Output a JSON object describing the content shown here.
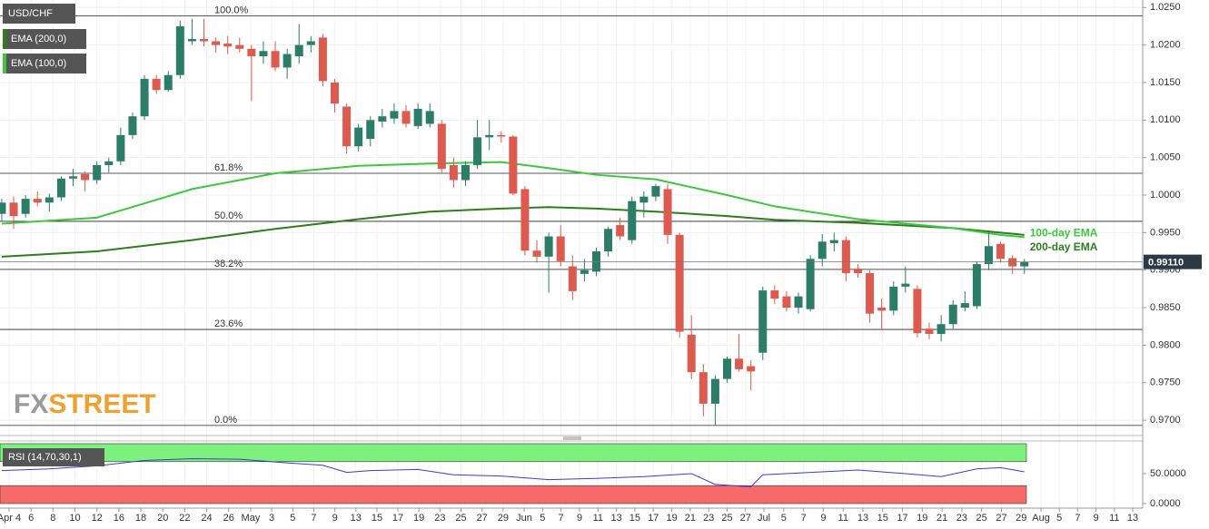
{
  "chart_data": {
    "type": "candlestick",
    "symbol": "USD/CHF",
    "logo": [
      "FX",
      "STREET"
    ],
    "up_color": "#2b7d68",
    "down_color": "#dc5a4e",
    "grid": true,
    "x": [
      0,
      1,
      2,
      3,
      4,
      5,
      6,
      7,
      8,
      9,
      10,
      11,
      12,
      13,
      14,
      15,
      16,
      17,
      18,
      19,
      20,
      21,
      22,
      23,
      24,
      25,
      26,
      27,
      28,
      29,
      30,
      31,
      32,
      33,
      34,
      35,
      36,
      37,
      38,
      39,
      40,
      41,
      42,
      43,
      44,
      45,
      46,
      47,
      48,
      49,
      50,
      51,
      52,
      53,
      54,
      55,
      56,
      57,
      58,
      59,
      60,
      61,
      62,
      63,
      64,
      65,
      66,
      67,
      68,
      69,
      70,
      71,
      72,
      73,
      74,
      75,
      76,
      77,
      78,
      79,
      80,
      81,
      82,
      83,
      84,
      85,
      86
    ],
    "ohlc": [
      [
        0.9975,
        0.9995,
        0.9965,
        0.999
      ],
      [
        0.999,
        0.9998,
        0.9955,
        0.9972
      ],
      [
        0.9975,
        1.0,
        0.997,
        0.9995
      ],
      [
        0.9995,
        1.0005,
        0.9985,
        0.999
      ],
      [
        0.999,
        1.0002,
        0.9978,
        0.9997
      ],
      [
        0.9997,
        1.0025,
        0.9992,
        1.0022
      ],
      [
        1.0022,
        1.0035,
        1.0012,
        1.0025
      ],
      [
        1.0028,
        1.0032,
        1.0005,
        1.002
      ],
      [
        1.002,
        1.0045,
        1.0015,
        1.004
      ],
      [
        1.004,
        1.005,
        1.003,
        1.0045
      ],
      [
        1.0045,
        1.009,
        1.004,
        1.008
      ],
      [
        1.008,
        1.011,
        1.0075,
        1.0105
      ],
      [
        1.0105,
        1.016,
        1.01,
        1.0155
      ],
      [
        1.0155,
        1.016,
        1.0135,
        1.014
      ],
      [
        1.014,
        1.0165,
        1.0138,
        1.016
      ],
      [
        1.016,
        1.0232,
        1.0155,
        1.0225
      ],
      [
        1.0205,
        1.0235,
        1.02,
        1.0208
      ],
      [
        1.0208,
        1.0235,
        1.0198,
        1.0205
      ],
      [
        1.0205,
        1.021,
        1.019,
        1.02
      ],
      [
        1.0202,
        1.0212,
        1.0188,
        1.0198
      ],
      [
        1.02,
        1.021,
        1.019,
        1.0195
      ],
      [
        1.0195,
        1.02,
        1.0125,
        1.0185
      ],
      [
        1.0185,
        1.0205,
        1.0175,
        1.0192
      ],
      [
        1.0192,
        1.0205,
        1.0165,
        1.017
      ],
      [
        1.017,
        1.0195,
        1.0155,
        1.0188
      ],
      [
        1.0185,
        1.0228,
        1.0175,
        1.02
      ],
      [
        1.02,
        1.0212,
        1.019,
        1.0205
      ],
      [
        1.021,
        1.0215,
        1.0145,
        1.0152
      ],
      [
        1.015,
        1.0155,
        1.011,
        1.0122
      ],
      [
        1.0118,
        1.0122,
        1.0055,
        1.0065
      ],
      [
        1.0065,
        1.0095,
        1.0058,
        1.009
      ],
      [
        1.0075,
        1.0105,
        1.0065,
        1.01
      ],
      [
        1.0098,
        1.0115,
        1.009,
        1.0105
      ],
      [
        1.0102,
        1.0122,
        1.0095,
        1.0112
      ],
      [
        1.0112,
        1.012,
        1.009,
        1.0095
      ],
      [
        1.0092,
        1.0122,
        1.0088,
        1.0115
      ],
      [
        1.0095,
        1.0122,
        1.009,
        1.0112
      ],
      [
        1.0095,
        1.01,
        1.003,
        1.0035
      ],
      [
        1.004,
        1.005,
        1.001,
        1.002
      ],
      [
        1.002,
        1.0045,
        1.0012,
        1.004
      ],
      [
        1.004,
        1.01,
        1.0035,
        1.0077
      ],
      [
        1.0077,
        1.01,
        1.006,
        1.008
      ],
      [
        1.008,
        1.0085,
        1.007,
        1.0078
      ],
      [
        1.0078,
        1.008,
        1.0,
        1.0002
      ],
      [
        1.0008,
        1.0012,
        0.992,
        0.9926
      ],
      [
        0.9926,
        0.994,
        0.991,
        0.9918
      ],
      [
        0.9918,
        0.995,
        0.987,
        0.9945
      ],
      [
        0.9945,
        0.996,
        0.9905,
        0.9912
      ],
      [
        0.9905,
        0.992,
        0.986,
        0.9872
      ],
      [
        0.9895,
        0.9915,
        0.9885,
        0.99
      ],
      [
        0.9898,
        0.993,
        0.9892,
        0.9925
      ],
      [
        0.9925,
        0.9958,
        0.9918,
        0.9955
      ],
      [
        0.996,
        0.997,
        0.994,
        0.9945
      ],
      [
        0.994,
        0.9998,
        0.9935,
        0.9992
      ],
      [
        0.999,
        1.0005,
        0.997,
        0.9998
      ],
      [
        0.9998,
        1.0015,
        0.9992,
        1.0012
      ],
      [
        1.0008,
        1.0015,
        0.9935,
        0.9947
      ],
      [
        0.9947,
        0.995,
        0.981,
        0.9818
      ],
      [
        0.9814,
        0.984,
        0.9755,
        0.9764
      ],
      [
        0.9764,
        0.9775,
        0.9705,
        0.9722
      ],
      [
        0.9722,
        0.976,
        0.9693,
        0.9755
      ],
      [
        0.9755,
        0.9785,
        0.975,
        0.9782
      ],
      [
        0.9782,
        0.9815,
        0.9765,
        0.9768
      ],
      [
        0.9772,
        0.978,
        0.974,
        0.9765
      ],
      [
        0.979,
        0.9878,
        0.978,
        0.9873
      ],
      [
        0.9873,
        0.988,
        0.9855,
        0.9862
      ],
      [
        0.9865,
        0.9872,
        0.9845,
        0.985
      ],
      [
        0.985,
        0.987,
        0.9842,
        0.9865
      ],
      [
        0.9848,
        0.992,
        0.9845,
        0.9915
      ],
      [
        0.9915,
        0.9948,
        0.9905,
        0.9938
      ],
      [
        0.9936,
        0.995,
        0.9925,
        0.994
      ],
      [
        0.994,
        0.9945,
        0.9885,
        0.9896
      ],
      [
        0.9902,
        0.9908,
        0.989,
        0.9896
      ],
      [
        0.9896,
        0.99,
        0.983,
        0.9842
      ],
      [
        0.985,
        0.9862,
        0.982,
        0.9846
      ],
      [
        0.9846,
        0.9885,
        0.984,
        0.9878
      ],
      [
        0.9878,
        0.9905,
        0.987,
        0.9882
      ],
      [
        0.9875,
        0.988,
        0.981,
        0.9816
      ],
      [
        0.9822,
        0.983,
        0.9808,
        0.9815
      ],
      [
        0.9815,
        0.984,
        0.9805,
        0.9828
      ],
      [
        0.9828,
        0.986,
        0.9822,
        0.9854
      ],
      [
        0.985,
        0.9872,
        0.9845,
        0.9856
      ],
      [
        0.9852,
        0.9912,
        0.9848,
        0.9908
      ],
      [
        0.9908,
        0.995,
        0.99,
        0.9932
      ],
      [
        0.9935,
        0.9938,
        0.991,
        0.9915
      ],
      [
        0.9916,
        0.992,
        0.9895,
        0.9905
      ],
      [
        0.9905,
        0.9915,
        0.9895,
        0.9911
      ]
    ],
    "xlim": [
      -0.15,
      95.95
    ],
    "xticks": [
      {
        "value": 0.61,
        "label": "Apr 4"
      },
      {
        "value": 2.46,
        "label": "6"
      },
      {
        "value": 4.3,
        "label": "8"
      },
      {
        "value": 6.15,
        "label": "10"
      },
      {
        "value": 8.0,
        "label": "12"
      },
      {
        "value": 9.85,
        "label": "16"
      },
      {
        "value": 11.69,
        "label": "18"
      },
      {
        "value": 13.54,
        "label": "20"
      },
      {
        "value": 15.39,
        "label": "22"
      },
      {
        "value": 17.23,
        "label": "24"
      },
      {
        "value": 19.08,
        "label": "26"
      },
      {
        "value": 20.93,
        "label": "May"
      },
      {
        "value": 22.7,
        "label": "3"
      },
      {
        "value": 24.47,
        "label": "5"
      },
      {
        "value": 26.24,
        "label": "7"
      },
      {
        "value": 28.01,
        "label": "9"
      },
      {
        "value": 29.78,
        "label": "13"
      },
      {
        "value": 31.55,
        "label": "15"
      },
      {
        "value": 33.31,
        "label": "17"
      },
      {
        "value": 35.08,
        "label": "19"
      },
      {
        "value": 36.85,
        "label": "23"
      },
      {
        "value": 38.62,
        "label": "25"
      },
      {
        "value": 40.39,
        "label": "27"
      },
      {
        "value": 42.16,
        "label": "29"
      },
      {
        "value": 43.93,
        "label": "Jun"
      },
      {
        "value": 45.48,
        "label": "5"
      },
      {
        "value": 47.03,
        "label": "7"
      },
      {
        "value": 48.59,
        "label": "9"
      },
      {
        "value": 50.14,
        "label": "11"
      },
      {
        "value": 51.69,
        "label": "13"
      },
      {
        "value": 53.24,
        "label": "15"
      },
      {
        "value": 54.79,
        "label": "17"
      },
      {
        "value": 56.35,
        "label": "19"
      },
      {
        "value": 57.9,
        "label": "21"
      },
      {
        "value": 59.45,
        "label": "23"
      },
      {
        "value": 61.0,
        "label": "25"
      },
      {
        "value": 62.55,
        "label": "27"
      },
      {
        "value": 64.1,
        "label": "Jul"
      },
      {
        "value": 65.76,
        "label": "5"
      },
      {
        "value": 67.43,
        "label": "7"
      },
      {
        "value": 69.09,
        "label": "9"
      },
      {
        "value": 70.76,
        "label": "11"
      },
      {
        "value": 72.42,
        "label": "13"
      },
      {
        "value": 74.08,
        "label": "15"
      },
      {
        "value": 75.75,
        "label": "17"
      },
      {
        "value": 77.41,
        "label": "19"
      },
      {
        "value": 79.08,
        "label": "21"
      },
      {
        "value": 80.74,
        "label": "23"
      },
      {
        "value": 82.4,
        "label": "25"
      },
      {
        "value": 84.07,
        "label": "27"
      },
      {
        "value": 85.73,
        "label": "29"
      },
      {
        "value": 87.4,
        "label": "Aug"
      },
      {
        "value": 88.94,
        "label": "5"
      },
      {
        "value": 90.48,
        "label": "7"
      },
      {
        "value": 92.03,
        "label": "9"
      },
      {
        "value": 93.57,
        "label": "11"
      },
      {
        "value": 95.11,
        "label": "13"
      }
    ],
    "ylim": [
      0.9682,
      1.026
    ],
    "yticks": [
      {
        "value": 1.025,
        "label": "1.0250"
      },
      {
        "value": 1.02,
        "label": "1.0200"
      },
      {
        "value": 1.015,
        "label": "1.0150"
      },
      {
        "value": 1.01,
        "label": "1.0100"
      },
      {
        "value": 1.005,
        "label": "1.0050"
      },
      {
        "value": 1,
        "label": "1.0000"
      },
      {
        "value": 0.995,
        "label": "0.9950"
      },
      {
        "value": 0.99,
        "label": "0.9900"
      },
      {
        "value": 0.985,
        "label": "0.9850"
      },
      {
        "value": 0.98,
        "label": "0.9800"
      },
      {
        "value": 0.975,
        "label": "0.9750"
      },
      {
        "value": 0.97,
        "label": "0.9700"
      }
    ],
    "ema": [
      {
        "name": "EMA (200,0)",
        "annotation": "200-day EMA",
        "color": "#2e7d1c",
        "x": [
          0,
          8,
          16,
          23,
          30,
          36,
          42,
          46,
          50,
          55,
          61,
          65,
          72,
          80,
          84,
          86
        ],
        "values": [
          0.9918,
          0.9925,
          0.994,
          0.9955,
          0.9968,
          0.9978,
          0.9982,
          0.9984,
          0.9982,
          0.9978,
          0.9972,
          0.9967,
          0.9963,
          0.9956,
          0.995,
          0.9947
        ]
      },
      {
        "name": "EMA (100,0)",
        "annotation": "100-day EMA",
        "color": "#3cc83c",
        "x": [
          0,
          8,
          16,
          23,
          30,
          36,
          42,
          46,
          50,
          55,
          61,
          65,
          72,
          80,
          84,
          86
        ],
        "values": [
          0.9962,
          0.997,
          1.0008,
          1.0029,
          1.0039,
          1.0042,
          1.0044,
          1.0036,
          1.0027,
          1.0021,
          1.0,
          0.9985,
          0.9968,
          0.9956,
          0.9947,
          0.9944
        ]
      }
    ],
    "fib_levels": [
      {
        "label": "100.0%",
        "value": 1.0239
      },
      {
        "label": "61.8%",
        "value": 1.0029
      },
      {
        "label": "50.0%",
        "value": 0.9965
      },
      {
        "label": "38.2%",
        "value": 0.9901
      },
      {
        "label": "23.6%",
        "value": 0.9821
      },
      {
        "label": "0.0%",
        "value": 0.9693
      }
    ],
    "last_price": {
      "value": 0.9911,
      "label": "0.99110"
    },
    "rsi": {
      "name": "RSI (14,70,30,1)",
      "color": "#3b3bd6",
      "x": [
        0,
        4,
        8,
        12,
        16,
        20,
        24,
        27,
        29,
        31,
        35,
        38,
        42,
        46,
        50,
        54,
        58,
        60,
        63,
        64,
        68,
        72,
        76,
        79,
        82,
        84,
        86
      ],
      "values": [
        55,
        58,
        63,
        72,
        75,
        74,
        68,
        64,
        52,
        55,
        57,
        48,
        46,
        40,
        42,
        45,
        50,
        32,
        28,
        48,
        52,
        56,
        50,
        45,
        58,
        60,
        53
      ],
      "ylim": [
        -7.6,
        103
      ],
      "yticks": [
        {
          "value": 50,
          "label": "50.0000"
        },
        {
          "value": 0,
          "label": "0.0000"
        }
      ],
      "overbought": [
        70,
        100
      ],
      "oversold": [
        0,
        30
      ],
      "overbought_color": "#7ef07e",
      "oversold_color": "#f76a6a"
    }
  }
}
